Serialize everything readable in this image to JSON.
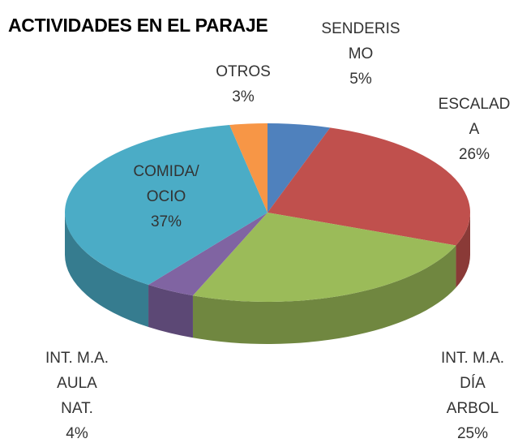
{
  "chart_data": {
    "type": "pie3d",
    "title": "ACTIVIDADES EN EL PARAJE",
    "categories": [
      "SENDERIS\nMO",
      "ESCALAD\nA",
      "INT. M.A.\nDÍA\nARBOL",
      "INT. M.A.\nAULA\nNAT.",
      "COMIDA/\nOCIO",
      "OTROS"
    ],
    "values": [
      5,
      26,
      25,
      4,
      37,
      3
    ],
    "value_labels": [
      "5%",
      "26%",
      "25%",
      "4%",
      "37%",
      "3%"
    ],
    "colors": [
      "#4f81bd",
      "#c0504d",
      "#9bbb59",
      "#8064a2",
      "#4bacc6",
      "#f79646"
    ]
  }
}
